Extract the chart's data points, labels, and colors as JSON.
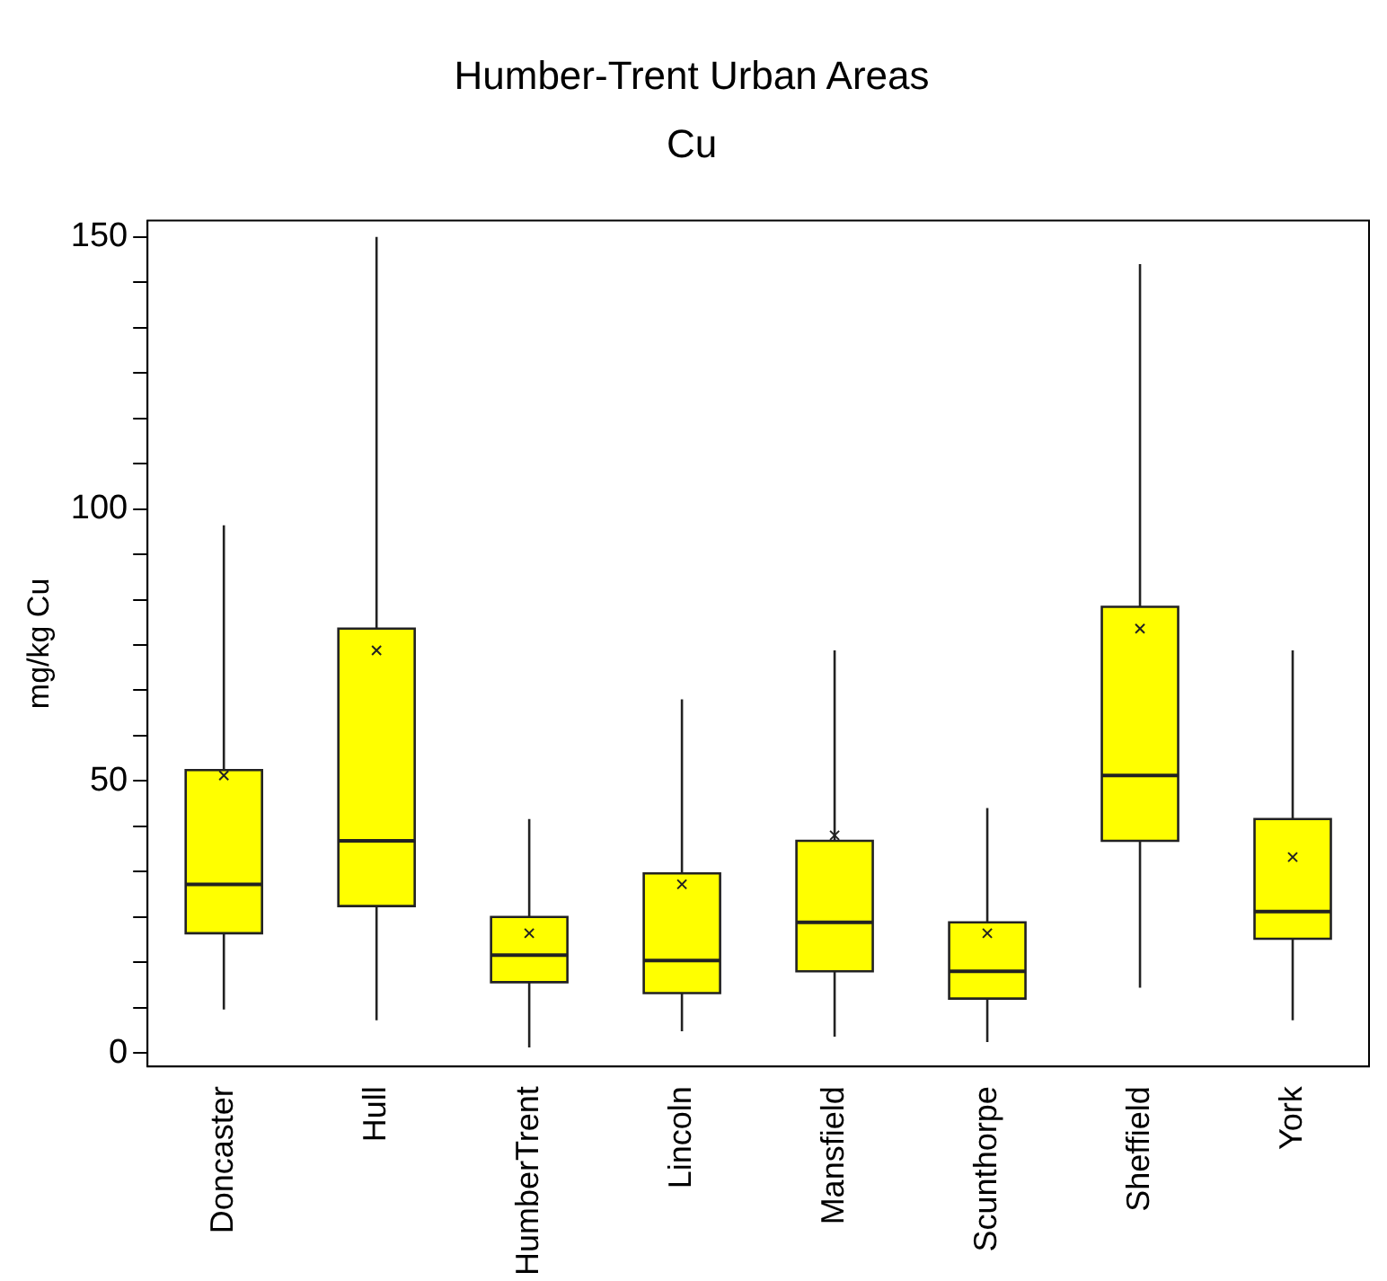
{
  "chart_data": {
    "type": "box",
    "title": "Humber-Trent Urban Areas",
    "subtitle": "Cu",
    "ylabel": "mg/kg Cu",
    "categories": [
      "Doncaster",
      "Hull",
      "HumberTrent",
      "Lincoln",
      "Mansfield",
      "Scunthorpe",
      "Sheffield",
      "York"
    ],
    "boxes": [
      {
        "low": 8,
        "q1": 22,
        "median": 31,
        "q3": 52,
        "high": 97,
        "mean": 51
      },
      {
        "low": 6,
        "q1": 27,
        "median": 39,
        "q3": 78,
        "high": 150,
        "mean": 74
      },
      {
        "low": 1,
        "q1": 13,
        "median": 18,
        "q3": 25,
        "high": 43,
        "mean": 22
      },
      {
        "low": 4,
        "q1": 11,
        "median": 17,
        "q3": 33,
        "high": 65,
        "mean": 31
      },
      {
        "low": 3,
        "q1": 15,
        "median": 24,
        "q3": 39,
        "high": 74,
        "mean": 40
      },
      {
        "low": 2,
        "q1": 10,
        "median": 15,
        "q3": 24,
        "high": 45,
        "mean": 22
      },
      {
        "low": 12,
        "q1": 39,
        "median": 51,
        "q3": 82,
        "high": 145,
        "mean": 78
      },
      {
        "low": 6,
        "q1": 21,
        "median": 26,
        "q3": 43,
        "high": 74,
        "mean": 36
      }
    ],
    "color": "#ffff00",
    "ylim": [
      -2.5,
      153
    ],
    "yticks": [
      0,
      {
        "value": 8.33,
        "label": null
      },
      {
        "value": 16.67,
        "label": null
      },
      {
        "value": 25,
        "label": null
      },
      {
        "value": 33.33,
        "label": null
      },
      {
        "value": 41.67,
        "label": null
      },
      50,
      {
        "value": 58.33,
        "label": null
      },
      {
        "value": 66.67,
        "label": null
      },
      {
        "value": 75,
        "label": null
      },
      {
        "value": 83.33,
        "label": null
      },
      {
        "value": 91.67,
        "label": null
      },
      100,
      {
        "value": 108.33,
        "label": null
      },
      {
        "value": 116.67,
        "label": null
      },
      {
        "value": 125,
        "label": null
      },
      {
        "value": 133.33,
        "label": null
      },
      {
        "value": 141.67,
        "label": null
      },
      150
    ],
    "grid": false,
    "legend": false
  }
}
